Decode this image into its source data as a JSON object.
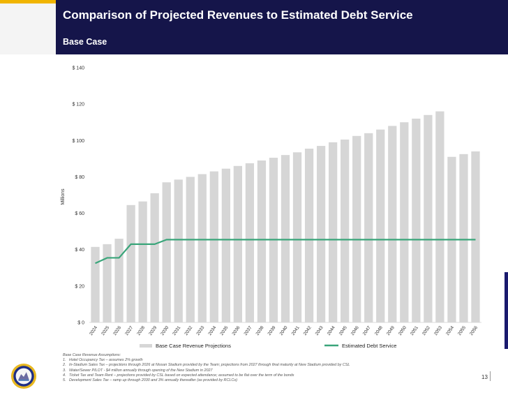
{
  "slide": {
    "title": "Comparison of Projected Revenues to Estimated Debt Service",
    "subtitle": "Base Case",
    "page_number": "13",
    "colors": {
      "header_bg": "#15154a",
      "accent_gold": "#f0b400",
      "bar": "#d6d6d6",
      "line": "#3aa57a"
    }
  },
  "chart_data": {
    "type": "bar",
    "ylabel": "Millions",
    "ylim": [
      0,
      140
    ],
    "yticks": [
      0,
      20,
      40,
      60,
      80,
      100,
      120,
      140
    ],
    "ytick_labels": [
      "$ 0",
      "$ 20",
      "$ 40",
      "$ 60",
      "$ 80",
      "$ 100",
      "$ 120",
      "$ 140"
    ],
    "gridlines": false,
    "legend_position": "bottom",
    "categories": [
      "2024",
      "2025",
      "2026",
      "2027",
      "2028",
      "2029",
      "2030",
      "2031",
      "2032",
      "2033",
      "2034",
      "2035",
      "2036",
      "2037",
      "2038",
      "2039",
      "2040",
      "2041",
      "2042",
      "2043",
      "2044",
      "2045",
      "2046",
      "2047",
      "2048",
      "2049",
      "2050",
      "2051",
      "2052",
      "2053",
      "2054",
      "2055",
      "2056"
    ],
    "series": [
      {
        "name": "Base Case Revenue Projections",
        "kind": "bar",
        "values": [
          41.5,
          43,
          46,
          64.5,
          66.5,
          71,
          77,
          78.5,
          80,
          81.5,
          83,
          84.5,
          86,
          87.5,
          89,
          90.5,
          92,
          93.5,
          95.5,
          97,
          99,
          100.5,
          102.5,
          104,
          106,
          108,
          110,
          112,
          114,
          116,
          91,
          92.5,
          94
        ]
      },
      {
        "name": "Estimated Debt Service",
        "kind": "line",
        "values": [
          32.5,
          35.5,
          35.5,
          43,
          43,
          43,
          45.5,
          45.5,
          45.5,
          45.5,
          45.5,
          45.5,
          45.5,
          45.5,
          45.5,
          45.5,
          45.5,
          45.5,
          45.5,
          45.5,
          45.5,
          45.5,
          45.5,
          45.5,
          45.5,
          45.5,
          45.5,
          45.5,
          45.5,
          45.5,
          45.5,
          45.5,
          45.5
        ]
      }
    ]
  },
  "notes": {
    "heading": "Base Case Revenue Assumptions:",
    "items": [
      {
        "num": "1.",
        "text": "Hotel Occupancy Tax – assumes 2% growth"
      },
      {
        "num": "2.",
        "text": "In-Stadium Sales Tax – projections through 2026 at Nissan Stadium provided by the Team; projections from 2027 through final maturity at New Stadium provided by CSL"
      },
      {
        "num": "3.",
        "text": "Water/Sewer PILOT - $4 million annually through opening of the New Stadium in 2027"
      },
      {
        "num": "4.",
        "text": "Ticket Tax and Team Rent – projections provided by CSL based on expected attendance; assumed to be flat over the term of the bonds"
      },
      {
        "num": "5.",
        "text": "Development Sales Tax – ramp up through 2030 and 3% annually thereafter (as provided by RCLCo)"
      }
    ]
  },
  "logo": {
    "name": "metro-nashville-seal-icon"
  }
}
